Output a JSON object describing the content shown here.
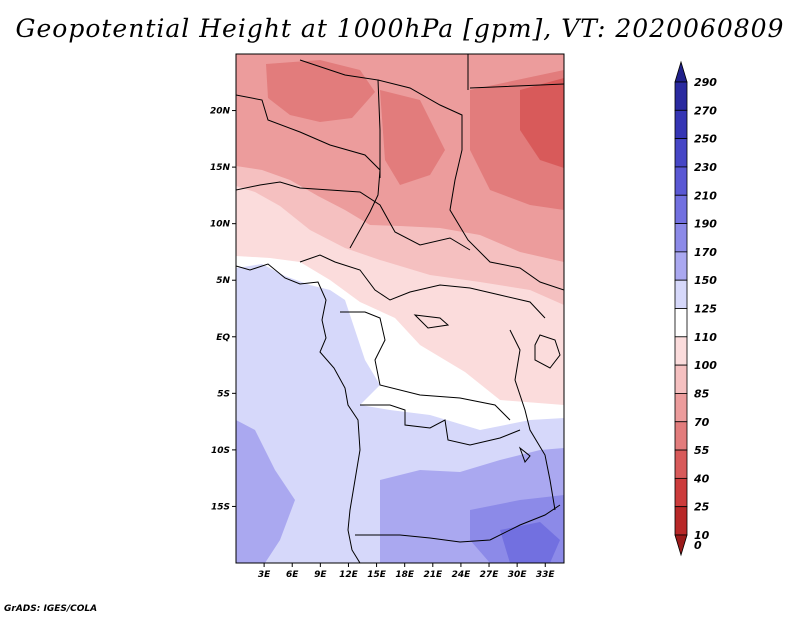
{
  "title": "Geopotential Height at 1000hPa [gpm], VT: 2020060809",
  "credit": "GrADS: IGES/COLA",
  "map": {
    "lat_labels": [
      "20N",
      "15N",
      "10N",
      "5N",
      "EQ",
      "5S",
      "10S",
      "15S"
    ],
    "lon_labels": [
      "3E",
      "6E",
      "9E",
      "12E",
      "15E",
      "18E",
      "21E",
      "24E",
      "27E",
      "30E",
      "33E"
    ],
    "lon_range": [
      0,
      35
    ],
    "lat_range": [
      -20,
      25
    ]
  },
  "colorbar": {
    "levels": [
      {
        "label": "290",
        "color": "#20208a"
      },
      {
        "label": "270",
        "color": "#2a2aa0"
      },
      {
        "label": "250",
        "color": "#3535b4"
      },
      {
        "label": "230",
        "color": "#4646c6"
      },
      {
        "label": "210",
        "color": "#5a58d4"
      },
      {
        "label": "190",
        "color": "#7270e0"
      },
      {
        "label": "170",
        "color": "#8c8ae8"
      },
      {
        "label": "150",
        "color": "#aaa8f0"
      },
      {
        "label": "125",
        "color": "#d6d8fa"
      },
      {
        "label": "110",
        "color": "#ffffff"
      },
      {
        "label": "100",
        "color": "#fbdcdc"
      },
      {
        "label": "85",
        "color": "#f5c0c0"
      },
      {
        "label": "70",
        "color": "#ec9c9c"
      },
      {
        "label": "55",
        "color": "#e27c7c"
      },
      {
        "label": "40",
        "color": "#d85a5a"
      },
      {
        "label": "25",
        "color": "#cc3c3c"
      },
      {
        "label": "10",
        "color": "#b82828"
      },
      {
        "label": "0",
        "color": "#9a1a1a"
      }
    ]
  }
}
